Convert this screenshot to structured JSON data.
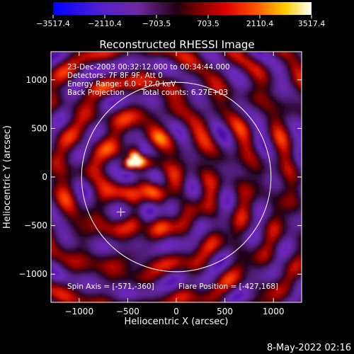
{
  "chart_data": {
    "type": "heatmap",
    "title": "Reconstructed RHESSI Image",
    "xlabel": "Heliocentric X (arcsec)",
    "ylabel": "Heliocentric Y (arcsec)",
    "xlim": [
      -1290,
      1290
    ],
    "ylim": [
      -1290,
      1290
    ],
    "x_ticks": [
      -1000,
      -500,
      0,
      500,
      1000
    ],
    "y_ticks": [
      -1000,
      -500,
      0,
      500,
      1000
    ],
    "x_tick_labels": [
      "−1000",
      "−500",
      "0",
      "500",
      "1000"
    ],
    "y_tick_labels": [
      "−1000",
      "−500",
      "0",
      "500",
      "1000"
    ],
    "colorbar": {
      "range": [
        -3517.4,
        3517.4
      ],
      "tick_labels": [
        "−3517.4",
        "−2110.4",
        "−703.5",
        "703.5",
        "2110.4",
        "3517.4"
      ],
      "tick_values": [
        -3517.4,
        -2110.4,
        -703.5,
        703.5,
        2110.4,
        3517.4
      ]
    },
    "annotations": {
      "time": "23-Dec-2003 00:32:12.000 to 00:34:44.000",
      "detectors": "Detectors: 7F 8F 9F, Att 0",
      "energy": "Energy Range: 6.0 - 12.0 keV",
      "method": "Back Projection",
      "counts": "Total counts: 6.27E+03",
      "spin_axis": "Spin Axis = [-571,-360]",
      "flare_position": "Flare Position = [-427,168]"
    },
    "spin_axis": [
      -571,
      -360
    ],
    "flare_position": [
      -427,
      168
    ],
    "solar_disk_radius_arcsec": 975,
    "solar_disk_center": [
      0,
      0
    ]
  },
  "footer": {
    "date": "8-May-2022 02:16"
  },
  "colors": {
    "background": "#000000",
    "foreground": "#ffffff",
    "colormap": [
      "#0000ff",
      "#7020c0",
      "#5a2a8a",
      "#6a0000",
      "#d00000",
      "#ff4000",
      "#ffb000",
      "#ffffff"
    ]
  }
}
